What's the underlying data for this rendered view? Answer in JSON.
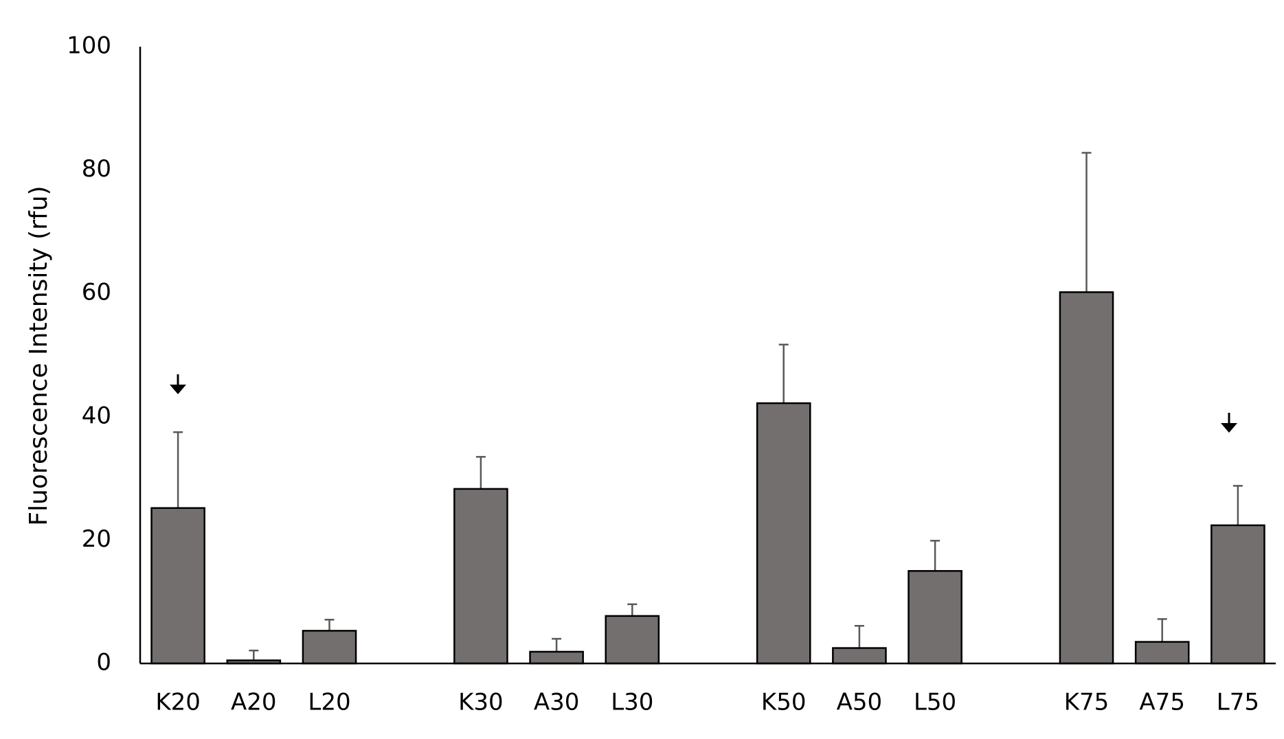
{
  "chart_data": {
    "type": "bar",
    "y_label": "Fluorescence Intensity (rfu)",
    "categories": [
      "K20",
      "A20",
      "L20",
      null,
      "K30",
      "A30",
      "L30",
      null,
      "K50",
      "A50",
      "L50",
      null,
      "K75",
      "A75",
      "L75"
    ],
    "values": [
      25.2,
      0.5,
      5.3,
      null,
      28.3,
      1.9,
      7.7,
      null,
      42.2,
      2.5,
      15.0,
      null,
      60.2,
      3.5,
      22.4
    ],
    "errors": [
      12.3,
      1.6,
      1.8,
      null,
      5.2,
      2.1,
      1.9,
      null,
      9.5,
      3.6,
      4.9,
      null,
      22.6,
      3.7,
      6.4
    ],
    "color": "#736f6e",
    "error_color": "#595959",
    "ylim": [
      0,
      100
    ],
    "yticks": [
      0,
      20,
      40,
      60,
      80,
      100
    ],
    "grid": false
  }
}
